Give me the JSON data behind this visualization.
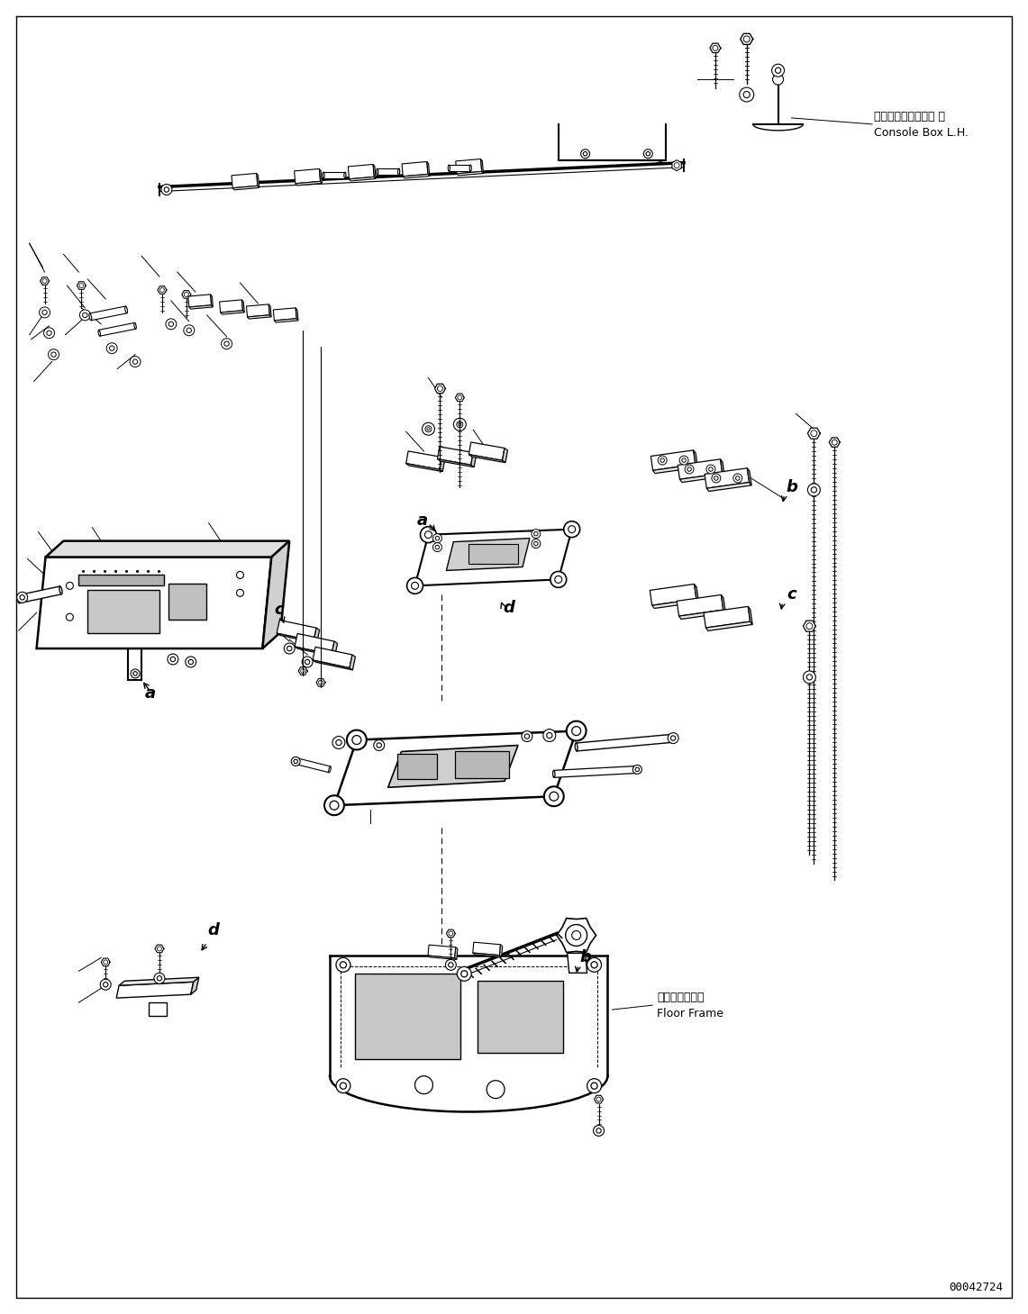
{
  "background_color": "#ffffff",
  "fig_width": 11.41,
  "fig_height": 14.59,
  "dpi": 100,
  "document_number": "00042724",
  "label_console_jp": "コンソールボックス 左",
  "label_console_en": "Console Box L.H.",
  "label_floor_jp": "フロアフレーム",
  "label_floor_en": "Floor Frame"
}
